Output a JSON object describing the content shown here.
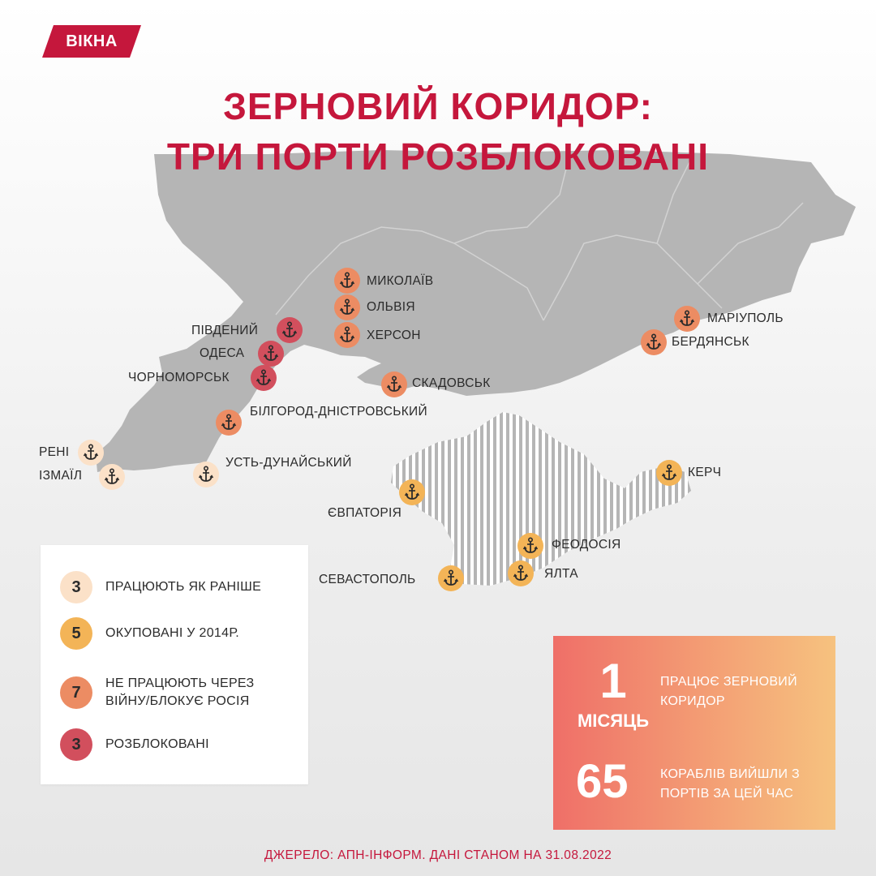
{
  "brand": {
    "logo_text": "ВІКНА",
    "accent_color": "#c5173c"
  },
  "title": {
    "line1": "ЗЕРНОВИЙ КОРИДОР:",
    "line2": "ТРИ ПОРТИ РОЗБЛОКОВАНІ"
  },
  "status_colors": {
    "working": "#fbe1c8",
    "occupied_2014": "#f3b457",
    "blocked_by_war": "#ec8c63",
    "unblocked": "#d24f5d"
  },
  "ports": [
    {
      "name": "МИКОЛАЇВ",
      "status": "blocked_by_war"
    },
    {
      "name": "ОЛЬВІЯ",
      "status": "blocked_by_war"
    },
    {
      "name": "ХЕРСОН",
      "status": "blocked_by_war"
    },
    {
      "name": "ПІВДЕНИЙ",
      "status": "unblocked"
    },
    {
      "name": "ОДЕСА",
      "status": "unblocked"
    },
    {
      "name": "ЧОРНОМОРСЬК",
      "status": "unblocked"
    },
    {
      "name": "СКАДОВСЬК",
      "status": "blocked_by_war"
    },
    {
      "name": "БІЛГОРОД-ДНІСТРОВСЬКИЙ",
      "status": "blocked_by_war"
    },
    {
      "name": "РЕНІ",
      "status": "working"
    },
    {
      "name": "ІЗМАЇЛ",
      "status": "working"
    },
    {
      "name": "УСТЬ-ДУНАЙСЬКИЙ",
      "status": "working"
    },
    {
      "name": "МАРІУПОЛЬ",
      "status": "blocked_by_war"
    },
    {
      "name": "БЕРДЯНСЬК",
      "status": "blocked_by_war"
    },
    {
      "name": "КЕРЧ",
      "status": "occupied_2014"
    },
    {
      "name": "ЄВПАТОРІЯ",
      "status": "occupied_2014"
    },
    {
      "name": "ФЕОДОСІЯ",
      "status": "occupied_2014"
    },
    {
      "name": "СЕВАСТОПОЛЬ",
      "status": "occupied_2014"
    },
    {
      "name": "ЯЛТА",
      "status": "occupied_2014"
    }
  ],
  "legend": [
    {
      "count": "3",
      "label": "ПРАЦЮЮТЬ ЯК РАНІШЕ",
      "status": "working"
    },
    {
      "count": "5",
      "label": "ОКУПОВАНІ У 2014Р.",
      "status": "occupied_2014"
    },
    {
      "count": "7",
      "label": "НЕ ПРАЦЮЮТЬ ЧЕРЕЗ ВІЙНУ/БЛОКУЄ РОСІЯ",
      "status": "blocked_by_war"
    },
    {
      "count": "3",
      "label": "РОЗБЛОКОВАНІ",
      "status": "unblocked"
    }
  ],
  "stats": {
    "duration_value": "1",
    "duration_unit": "МІСЯЦЬ",
    "duration_text": "ПРАЦЮЄ ЗЕРНОВИЙ КОРИДОР",
    "ships_value": "65",
    "ships_text": "КОРАБЛІВ ВИЙШЛИ З ПОРТІВ ЗА ЦЕЙ ЧАС"
  },
  "source": "ДЖЕРЕЛО: АПН-ІНФОРМ. ДАНІ СТАНОМ НА 31.08.2022"
}
